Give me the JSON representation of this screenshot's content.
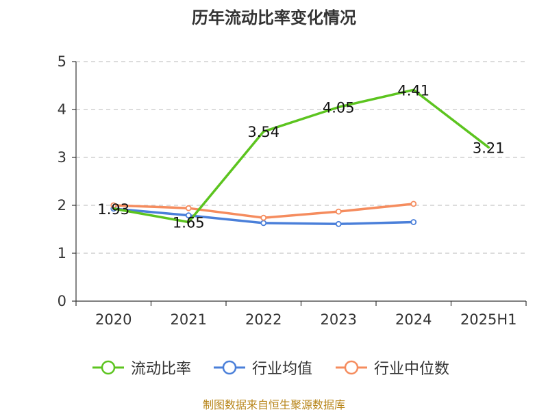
{
  "title": "历年流动比率变化情况",
  "source": "制图数据来自恒生聚源数据库",
  "colors": {
    "流动比率": "#5cc41f",
    "行业均值": "#4a7fd9",
    "行业中位数": "#f58c5e",
    "grid": "#c8c8c8",
    "axis": "#333333"
  },
  "chart_data": {
    "type": "line",
    "title": "历年流动比率变化情况",
    "xlabel": "",
    "ylabel": "",
    "categories": [
      "2020",
      "2021",
      "2022",
      "2023",
      "2024",
      "2025H1"
    ],
    "ylim": [
      0,
      5
    ],
    "yticks": [
      "0",
      "1",
      "2",
      "3",
      "4",
      "5"
    ],
    "grid": true,
    "legend_position": "bottom",
    "series": [
      {
        "name": "流动比率",
        "values": [
          1.93,
          1.65,
          3.54,
          4.05,
          4.41,
          3.21
        ],
        "labels": [
          "1.93",
          "1.65",
          "3.54",
          "4.05",
          "4.41",
          "3.21"
        ],
        "show_labels": true,
        "markers": false
      },
      {
        "name": "行业均值",
        "values": [
          1.93,
          1.79,
          1.63,
          1.61,
          1.65,
          null
        ],
        "show_labels": false,
        "markers": true
      },
      {
        "name": "行业中位数",
        "values": [
          2.0,
          1.94,
          1.74,
          1.87,
          2.03,
          null
        ],
        "show_labels": false,
        "markers": true
      }
    ]
  }
}
